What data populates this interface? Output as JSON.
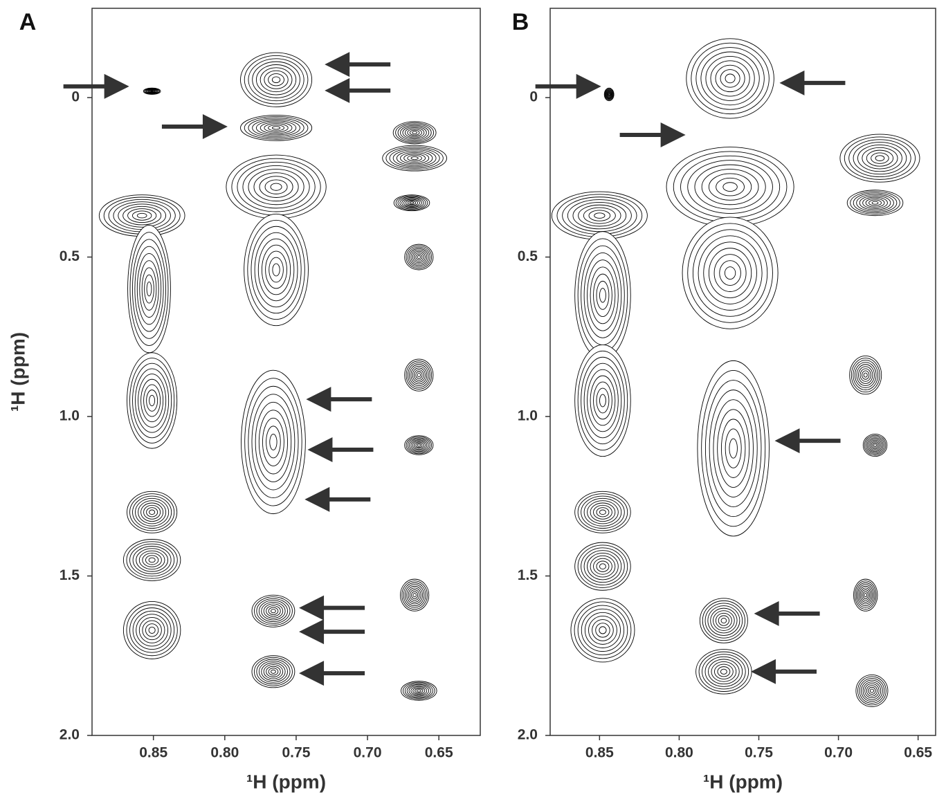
{
  "chart_data": [
    {
      "type": "contour",
      "panel": "A",
      "x_label": "¹H (ppm)",
      "y_label": "¹H (ppm)",
      "xlim": [
        0.621,
        0.893
      ],
      "x_inverted": true,
      "ylim": [
        -0.28,
        2.0
      ],
      "y_inverted": true,
      "xticks": [
        0.85,
        {
          "value": 0.8,
          "label": "0.80"
        },
        0.75,
        {
          "value": 0.7,
          "label": "0.70"
        },
        0.65
      ],
      "yticks": [
        0,
        0.5,
        {
          "value": 1,
          "label": "1.0"
        },
        1.5,
        {
          "value": 2,
          "label": "2.0"
        }
      ],
      "color": "#000000",
      "x": [
        0.851,
        0.764,
        0.764,
        0.764,
        0.858,
        0.667,
        0.667,
        0.669,
        0.764,
        0.853,
        0.664,
        0.851,
        0.766,
        0.664,
        0.664,
        0.851,
        0.851,
        0.851,
        0.766,
        0.766,
        0.667,
        0.664
      ],
      "y": [
        -0.02,
        -0.056,
        0.095,
        0.28,
        0.37,
        0.11,
        0.19,
        0.33,
        0.54,
        0.6,
        0.5,
        0.95,
        1.08,
        0.87,
        1.09,
        1.3,
        1.45,
        1.67,
        1.61,
        1.8,
        1.56,
        1.86
      ],
      "widths": [
        0.012,
        0.05,
        0.05,
        0.07,
        0.06,
        0.03,
        0.045,
        0.025,
        0.045,
        0.03,
        0.02,
        0.035,
        0.045,
        0.02,
        0.02,
        0.035,
        0.04,
        0.04,
        0.03,
        0.03,
        0.02,
        0.025
      ],
      "heights": [
        0.02,
        0.17,
        0.08,
        0.2,
        0.13,
        0.07,
        0.08,
        0.05,
        0.35,
        0.4,
        0.08,
        0.3,
        0.45,
        0.1,
        0.06,
        0.13,
        0.13,
        0.18,
        0.1,
        0.1,
        0.1,
        0.06
      ],
      "arrows": {
        "x": [
          0.73,
          0.73,
          0.798,
          0.867,
          0.743,
          0.742,
          0.744,
          0.748,
          0.748,
          0.748
        ],
        "y": [
          -0.104,
          -0.022,
          0.091,
          -0.035,
          0.946,
          1.104,
          1.26,
          1.6,
          1.675,
          1.805
        ],
        "direction": [
          "left",
          "left",
          "right",
          "right",
          "left",
          "left",
          "left",
          "left",
          "left",
          "left"
        ]
      }
    },
    {
      "type": "contour",
      "panel": "B",
      "x_label": "¹H (ppm)",
      "xlim": [
        0.639,
        0.881
      ],
      "x_inverted": true,
      "ylim": [
        -0.28,
        2.0
      ],
      "y_inverted": true,
      "xticks": [
        0.85,
        {
          "value": 0.8,
          "label": "0.80"
        },
        0.75,
        {
          "value": 0.7,
          "label": "0.70"
        },
        0.65
      ],
      "yticks": [
        0,
        0.5,
        {
          "value": 1,
          "label": "1.0"
        },
        1.5,
        {
          "value": 2,
          "label": "2.0"
        }
      ],
      "color": "#000000",
      "x": [
        0.844,
        0.768,
        0.768,
        0.85,
        0.674,
        0.677,
        0.768,
        0.848,
        0.848,
        0.766,
        0.683,
        0.677,
        0.848,
        0.848,
        0.848,
        0.772,
        0.772,
        0.683,
        0.679
      ],
      "y": [
        -0.01,
        -0.06,
        0.28,
        0.37,
        0.19,
        0.33,
        0.55,
        0.62,
        0.95,
        1.1,
        0.87,
        1.09,
        1.3,
        1.47,
        1.67,
        1.64,
        1.8,
        1.56,
        1.86
      ],
      "widths": [
        0.006,
        0.055,
        0.08,
        0.06,
        0.05,
        0.035,
        0.06,
        0.035,
        0.035,
        0.045,
        0.02,
        0.015,
        0.035,
        0.035,
        0.04,
        0.03,
        0.035,
        0.015,
        0.02
      ],
      "heights": [
        0.04,
        0.25,
        0.25,
        0.15,
        0.15,
        0.08,
        0.35,
        0.4,
        0.35,
        0.55,
        0.12,
        0.07,
        0.13,
        0.15,
        0.2,
        0.14,
        0.14,
        0.1,
        0.1
      ],
      "arrows": {
        "x": [
          0.849,
          0.796,
          0.737,
          0.74,
          0.753,
          0.755
        ],
        "y": [
          -0.035,
          0.117,
          -0.046,
          1.076,
          1.618,
          1.8
        ],
        "direction": [
          "right",
          "right",
          "left",
          "left",
          "left",
          "left"
        ]
      }
    }
  ]
}
